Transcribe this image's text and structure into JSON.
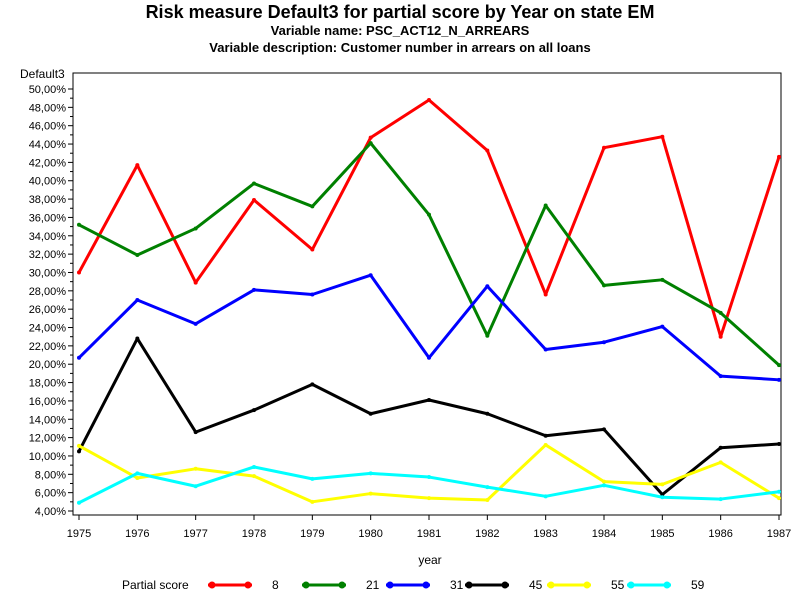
{
  "chart_data": {
    "type": "line",
    "title": "Risk measure Default3 for partial score by Year on state EM",
    "subtitle_1": "Variable name: PSC_ACT12_N_ARREARS",
    "subtitle_2": "Variable description: Customer number in arrears on all loans",
    "xlabel": "year",
    "ylabel": "Default3",
    "legend_title": "Partial score",
    "legend_position": "bottom",
    "x": [
      1975,
      1976,
      1977,
      1978,
      1979,
      1980,
      1981,
      1982,
      1983,
      1984,
      1985,
      1986,
      1987
    ],
    "ylim": [
      4,
      50
    ],
    "y_ticks": [
      "4,00%",
      "6,00%",
      "8,00%",
      "10,00%",
      "12,00%",
      "14,00%",
      "16,00%",
      "18,00%",
      "20,00%",
      "22,00%",
      "24,00%",
      "26,00%",
      "28,00%",
      "30,00%",
      "32,00%",
      "34,00%",
      "36,00%",
      "38,00%",
      "40,00%",
      "42,00%",
      "44,00%",
      "46,00%",
      "48,00%",
      "50,00%"
    ],
    "series": [
      {
        "name": "8",
        "color": "#ff0000",
        "values": [
          30.0,
          41.7,
          28.9,
          37.9,
          32.5,
          44.7,
          48.8,
          43.3,
          27.6,
          43.6,
          44.8,
          23.0,
          42.6
        ]
      },
      {
        "name": "21",
        "color": "#008000",
        "values": [
          35.2,
          31.9,
          34.8,
          39.7,
          37.2,
          44.1,
          36.3,
          23.1,
          37.3,
          28.6,
          29.2,
          25.6,
          19.9
        ]
      },
      {
        "name": "31",
        "color": "#0000ff",
        "values": [
          20.7,
          27.0,
          24.4,
          28.1,
          27.6,
          29.7,
          20.7,
          28.5,
          21.6,
          22.4,
          24.1,
          18.7,
          18.3
        ]
      },
      {
        "name": "45",
        "color": "#000000",
        "values": [
          10.5,
          22.8,
          12.6,
          15.0,
          17.8,
          14.6,
          16.1,
          14.6,
          12.2,
          12.9,
          5.8,
          10.9,
          11.3
        ]
      },
      {
        "name": "55",
        "color": "#ffff00",
        "values": [
          11.1,
          7.6,
          8.6,
          7.8,
          5.0,
          5.9,
          5.4,
          5.2,
          11.2,
          7.2,
          6.9,
          9.3,
          5.4
        ]
      },
      {
        "name": "59",
        "color": "#00ffff",
        "values": [
          4.9,
          8.1,
          6.7,
          8.8,
          7.5,
          8.1,
          7.7,
          6.6,
          5.6,
          6.8,
          5.5,
          5.3,
          6.1
        ]
      }
    ]
  }
}
